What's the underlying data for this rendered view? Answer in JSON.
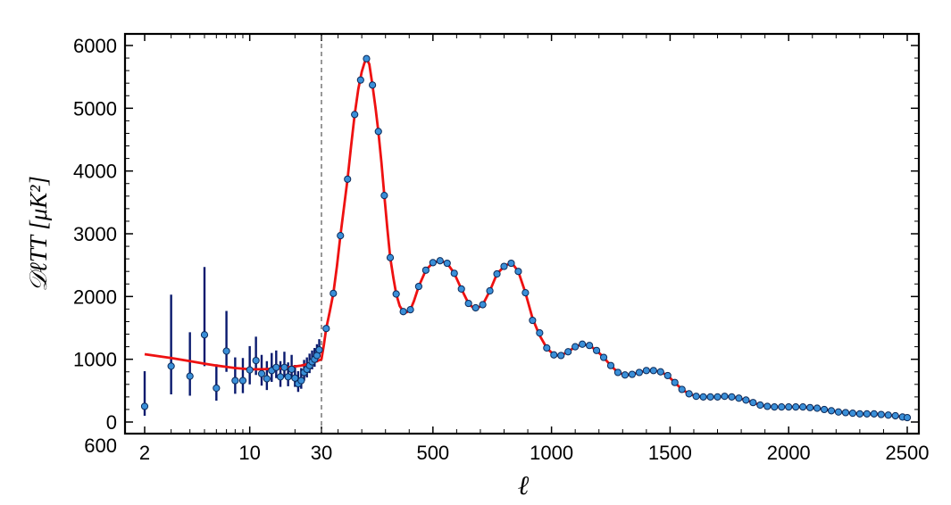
{
  "chart_data": {
    "type": "scatter",
    "title": "",
    "xlabel": "ℓ",
    "ylabel": "𝒟ℓTT [μK²]",
    "ylim": [
      -150,
      6150
    ],
    "grid": false,
    "x_scale": "log for ℓ = 2–30, linear for ℓ = 30–2500",
    "x_ticks": [
      "2",
      "10",
      "30",
      "500",
      "1000",
      "1500",
      "2000",
      "2500"
    ],
    "y_ticks": [
      "0",
      "1000",
      "2000",
      "3000",
      "4000",
      "5000",
      "6000"
    ],
    "y_extra_label": "600",
    "colors": {
      "points": "#3a8fd8",
      "point_edge": "#0b2a5a",
      "error_bars": "#0a1a6e",
      "model": "#ee1111",
      "divider": "#555555"
    },
    "low_ell_points": [
      {
        "x": 2,
        "y": 250,
        "err_lo": 150,
        "err_hi": 560
      },
      {
        "x": 3,
        "y": 890,
        "err_lo": 450,
        "err_hi": 1140
      },
      {
        "x": 4,
        "y": 730,
        "err_lo": 310,
        "err_hi": 700
      },
      {
        "x": 5,
        "y": 1390,
        "err_lo": 500,
        "err_hi": 1080
      },
      {
        "x": 6,
        "y": 540,
        "err_lo": 200,
        "err_hi": 380
      },
      {
        "x": 7,
        "y": 1130,
        "err_lo": 330,
        "err_hi": 640
      },
      {
        "x": 8,
        "y": 660,
        "err_lo": 210,
        "err_hi": 370
      },
      {
        "x": 9,
        "y": 660,
        "err_lo": 200,
        "err_hi": 360
      },
      {
        "x": 10,
        "y": 830,
        "err_lo": 230,
        "err_hi": 380
      },
      {
        "x": 11,
        "y": 980,
        "err_lo": 230,
        "err_hi": 380
      },
      {
        "x": 12,
        "y": 770,
        "err_lo": 190,
        "err_hi": 300
      },
      {
        "x": 13,
        "y": 690,
        "err_lo": 180,
        "err_hi": 280
      },
      {
        "x": 14,
        "y": 820,
        "err_lo": 180,
        "err_hi": 280
      },
      {
        "x": 15,
        "y": 870,
        "err_lo": 170,
        "err_hi": 270
      },
      {
        "x": 16,
        "y": 720,
        "err_lo": 160,
        "err_hi": 250
      },
      {
        "x": 17,
        "y": 870,
        "err_lo": 160,
        "err_hi": 250
      },
      {
        "x": 18,
        "y": 720,
        "err_lo": 150,
        "err_hi": 230
      },
      {
        "x": 19,
        "y": 840,
        "err_lo": 150,
        "err_hi": 230
      },
      {
        "x": 20,
        "y": 700,
        "err_lo": 140,
        "err_hi": 210
      },
      {
        "x": 21,
        "y": 610,
        "err_lo": 130,
        "err_hi": 200
      },
      {
        "x": 22,
        "y": 660,
        "err_lo": 130,
        "err_hi": 200
      },
      {
        "x": 23,
        "y": 790,
        "err_lo": 130,
        "err_hi": 200
      },
      {
        "x": 24,
        "y": 840,
        "err_lo": 130,
        "err_hi": 190
      },
      {
        "x": 25,
        "y": 900,
        "err_lo": 120,
        "err_hi": 190
      },
      {
        "x": 26,
        "y": 960,
        "err_lo": 120,
        "err_hi": 180
      },
      {
        "x": 27,
        "y": 1000,
        "err_lo": 120,
        "err_hi": 180
      },
      {
        "x": 28,
        "y": 1060,
        "err_lo": 110,
        "err_hi": 180
      },
      {
        "x": 29,
        "y": 1150,
        "err_lo": 110,
        "err_hi": 170
      }
    ],
    "high_ell_points": [
      {
        "x": 50,
        "y": 1490
      },
      {
        "x": 80,
        "y": 2050
      },
      {
        "x": 110,
        "y": 2970
      },
      {
        "x": 140,
        "y": 3870
      },
      {
        "x": 170,
        "y": 4900
      },
      {
        "x": 195,
        "y": 5450
      },
      {
        "x": 220,
        "y": 5790
      },
      {
        "x": 245,
        "y": 5370
      },
      {
        "x": 270,
        "y": 4630
      },
      {
        "x": 295,
        "y": 3610
      },
      {
        "x": 320,
        "y": 2620
      },
      {
        "x": 345,
        "y": 2040
      },
      {
        "x": 375,
        "y": 1760
      },
      {
        "x": 405,
        "y": 1790
      },
      {
        "x": 440,
        "y": 2160
      },
      {
        "x": 470,
        "y": 2420
      },
      {
        "x": 500,
        "y": 2540
      },
      {
        "x": 530,
        "y": 2570
      },
      {
        "x": 560,
        "y": 2530
      },
      {
        "x": 590,
        "y": 2370
      },
      {
        "x": 620,
        "y": 2120
      },
      {
        "x": 650,
        "y": 1890
      },
      {
        "x": 680,
        "y": 1820
      },
      {
        "x": 710,
        "y": 1870
      },
      {
        "x": 740,
        "y": 2090
      },
      {
        "x": 770,
        "y": 2360
      },
      {
        "x": 800,
        "y": 2480
      },
      {
        "x": 830,
        "y": 2530
      },
      {
        "x": 860,
        "y": 2400
      },
      {
        "x": 890,
        "y": 2060
      },
      {
        "x": 920,
        "y": 1620
      },
      {
        "x": 950,
        "y": 1420
      },
      {
        "x": 980,
        "y": 1180
      },
      {
        "x": 1010,
        "y": 1070
      },
      {
        "x": 1040,
        "y": 1060
      },
      {
        "x": 1070,
        "y": 1120
      },
      {
        "x": 1100,
        "y": 1200
      },
      {
        "x": 1130,
        "y": 1240
      },
      {
        "x": 1160,
        "y": 1220
      },
      {
        "x": 1190,
        "y": 1140
      },
      {
        "x": 1220,
        "y": 1030
      },
      {
        "x": 1250,
        "y": 900
      },
      {
        "x": 1280,
        "y": 790
      },
      {
        "x": 1310,
        "y": 750
      },
      {
        "x": 1340,
        "y": 760
      },
      {
        "x": 1370,
        "y": 790
      },
      {
        "x": 1400,
        "y": 820
      },
      {
        "x": 1430,
        "y": 820
      },
      {
        "x": 1460,
        "y": 800
      },
      {
        "x": 1490,
        "y": 740
      },
      {
        "x": 1520,
        "y": 630
      },
      {
        "x": 1550,
        "y": 520
      },
      {
        "x": 1580,
        "y": 450
      },
      {
        "x": 1610,
        "y": 410
      },
      {
        "x": 1640,
        "y": 400
      },
      {
        "x": 1670,
        "y": 400
      },
      {
        "x": 1700,
        "y": 400
      },
      {
        "x": 1730,
        "y": 410
      },
      {
        "x": 1760,
        "y": 400
      },
      {
        "x": 1790,
        "y": 380
      },
      {
        "x": 1820,
        "y": 350
      },
      {
        "x": 1850,
        "y": 310
      },
      {
        "x": 1880,
        "y": 270
      },
      {
        "x": 1910,
        "y": 250
      },
      {
        "x": 1940,
        "y": 240
      },
      {
        "x": 1970,
        "y": 240
      },
      {
        "x": 2000,
        "y": 240
      },
      {
        "x": 2030,
        "y": 240
      },
      {
        "x": 2060,
        "y": 240
      },
      {
        "x": 2090,
        "y": 230
      },
      {
        "x": 2120,
        "y": 220
      },
      {
        "x": 2150,
        "y": 200
      },
      {
        "x": 2180,
        "y": 180
      },
      {
        "x": 2210,
        "y": 160
      },
      {
        "x": 2240,
        "y": 150
      },
      {
        "x": 2270,
        "y": 140
      },
      {
        "x": 2300,
        "y": 130
      },
      {
        "x": 2330,
        "y": 130
      },
      {
        "x": 2360,
        "y": 130
      },
      {
        "x": 2390,
        "y": 120
      },
      {
        "x": 2420,
        "y": 110
      },
      {
        "x": 2450,
        "y": 100
      },
      {
        "x": 2480,
        "y": 80
      },
      {
        "x": 2500,
        "y": 70
      }
    ],
    "model_curve": [
      {
        "x": 2,
        "y": 1080
      },
      {
        "x": 3,
        "y": 1020
      },
      {
        "x": 4,
        "y": 970
      },
      {
        "x": 5,
        "y": 930
      },
      {
        "x": 6,
        "y": 900
      },
      {
        "x": 8,
        "y": 860
      },
      {
        "x": 10,
        "y": 840
      },
      {
        "x": 12,
        "y": 840
      },
      {
        "x": 15,
        "y": 850
      },
      {
        "x": 18,
        "y": 870
      },
      {
        "x": 22,
        "y": 900
      },
      {
        "x": 26,
        "y": 940
      },
      {
        "x": 30,
        "y": 1000
      },
      {
        "x": 40,
        "y": 1230
      },
      {
        "x": 50,
        "y": 1490
      },
      {
        "x": 65,
        "y": 1760
      },
      {
        "x": 80,
        "y": 2050
      },
      {
        "x": 95,
        "y": 2480
      },
      {
        "x": 110,
        "y": 2970
      },
      {
        "x": 125,
        "y": 3420
      },
      {
        "x": 140,
        "y": 3870
      },
      {
        "x": 155,
        "y": 4400
      },
      {
        "x": 170,
        "y": 4900
      },
      {
        "x": 185,
        "y": 5300
      },
      {
        "x": 200,
        "y": 5580
      },
      {
        "x": 212,
        "y": 5730
      },
      {
        "x": 222,
        "y": 5780
      },
      {
        "x": 232,
        "y": 5700
      },
      {
        "x": 245,
        "y": 5370
      },
      {
        "x": 258,
        "y": 5000
      },
      {
        "x": 270,
        "y": 4630
      },
      {
        "x": 283,
        "y": 4130
      },
      {
        "x": 295,
        "y": 3610
      },
      {
        "x": 308,
        "y": 3080
      },
      {
        "x": 320,
        "y": 2620
      },
      {
        "x": 333,
        "y": 2300
      },
      {
        "x": 345,
        "y": 2040
      },
      {
        "x": 360,
        "y": 1850
      },
      {
        "x": 375,
        "y": 1760
      },
      {
        "x": 390,
        "y": 1750
      },
      {
        "x": 405,
        "y": 1790
      },
      {
        "x": 420,
        "y": 1930
      },
      {
        "x": 440,
        "y": 2160
      },
      {
        "x": 470,
        "y": 2420
      },
      {
        "x": 500,
        "y": 2540
      },
      {
        "x": 530,
        "y": 2570
      },
      {
        "x": 560,
        "y": 2530
      },
      {
        "x": 590,
        "y": 2370
      },
      {
        "x": 620,
        "y": 2120
      },
      {
        "x": 650,
        "y": 1890
      },
      {
        "x": 670,
        "y": 1820
      },
      {
        "x": 690,
        "y": 1820
      },
      {
        "x": 710,
        "y": 1870
      },
      {
        "x": 740,
        "y": 2090
      },
      {
        "x": 770,
        "y": 2360
      },
      {
        "x": 800,
        "y": 2480
      },
      {
        "x": 820,
        "y": 2520
      },
      {
        "x": 840,
        "y": 2500
      },
      {
        "x": 860,
        "y": 2400
      },
      {
        "x": 890,
        "y": 2060
      },
      {
        "x": 920,
        "y": 1650
      },
      {
        "x": 950,
        "y": 1380
      },
      {
        "x": 980,
        "y": 1180
      },
      {
        "x": 1010,
        "y": 1070
      },
      {
        "x": 1040,
        "y": 1060
      },
      {
        "x": 1070,
        "y": 1120
      },
      {
        "x": 1100,
        "y": 1200
      },
      {
        "x": 1130,
        "y": 1240
      },
      {
        "x": 1160,
        "y": 1220
      },
      {
        "x": 1190,
        "y": 1140
      },
      {
        "x": 1220,
        "y": 1030
      },
      {
        "x": 1250,
        "y": 900
      },
      {
        "x": 1280,
        "y": 790
      },
      {
        "x": 1310,
        "y": 750
      },
      {
        "x": 1340,
        "y": 760
      },
      {
        "x": 1370,
        "y": 790
      },
      {
        "x": 1400,
        "y": 820
      },
      {
        "x": 1430,
        "y": 820
      },
      {
        "x": 1460,
        "y": 800
      },
      {
        "x": 1490,
        "y": 740
      },
      {
        "x": 1520,
        "y": 630
      },
      {
        "x": 1550,
        "y": 520
      },
      {
        "x": 1580,
        "y": 450
      },
      {
        "x": 1610,
        "y": 410
      },
      {
        "x": 1640,
        "y": 400
      },
      {
        "x": 1700,
        "y": 400
      },
      {
        "x": 1730,
        "y": 410
      },
      {
        "x": 1760,
        "y": 400
      },
      {
        "x": 1790,
        "y": 380
      },
      {
        "x": 1820,
        "y": 350
      },
      {
        "x": 1850,
        "y": 310
      },
      {
        "x": 1880,
        "y": 270
      },
      {
        "x": 1910,
        "y": 250
      },
      {
        "x": 1940,
        "y": 240
      },
      {
        "x": 2060,
        "y": 240
      },
      {
        "x": 2090,
        "y": 230
      },
      {
        "x": 2120,
        "y": 220
      },
      {
        "x": 2150,
        "y": 200
      },
      {
        "x": 2180,
        "y": 180
      },
      {
        "x": 2210,
        "y": 160
      },
      {
        "x": 2240,
        "y": 150
      },
      {
        "x": 2270,
        "y": 140
      },
      {
        "x": 2300,
        "y": 130
      },
      {
        "x": 2360,
        "y": 130
      },
      {
        "x": 2390,
        "y": 120
      },
      {
        "x": 2420,
        "y": 110
      },
      {
        "x": 2450,
        "y": 100
      },
      {
        "x": 2480,
        "y": 80
      },
      {
        "x": 2500,
        "y": 70
      }
    ]
  }
}
